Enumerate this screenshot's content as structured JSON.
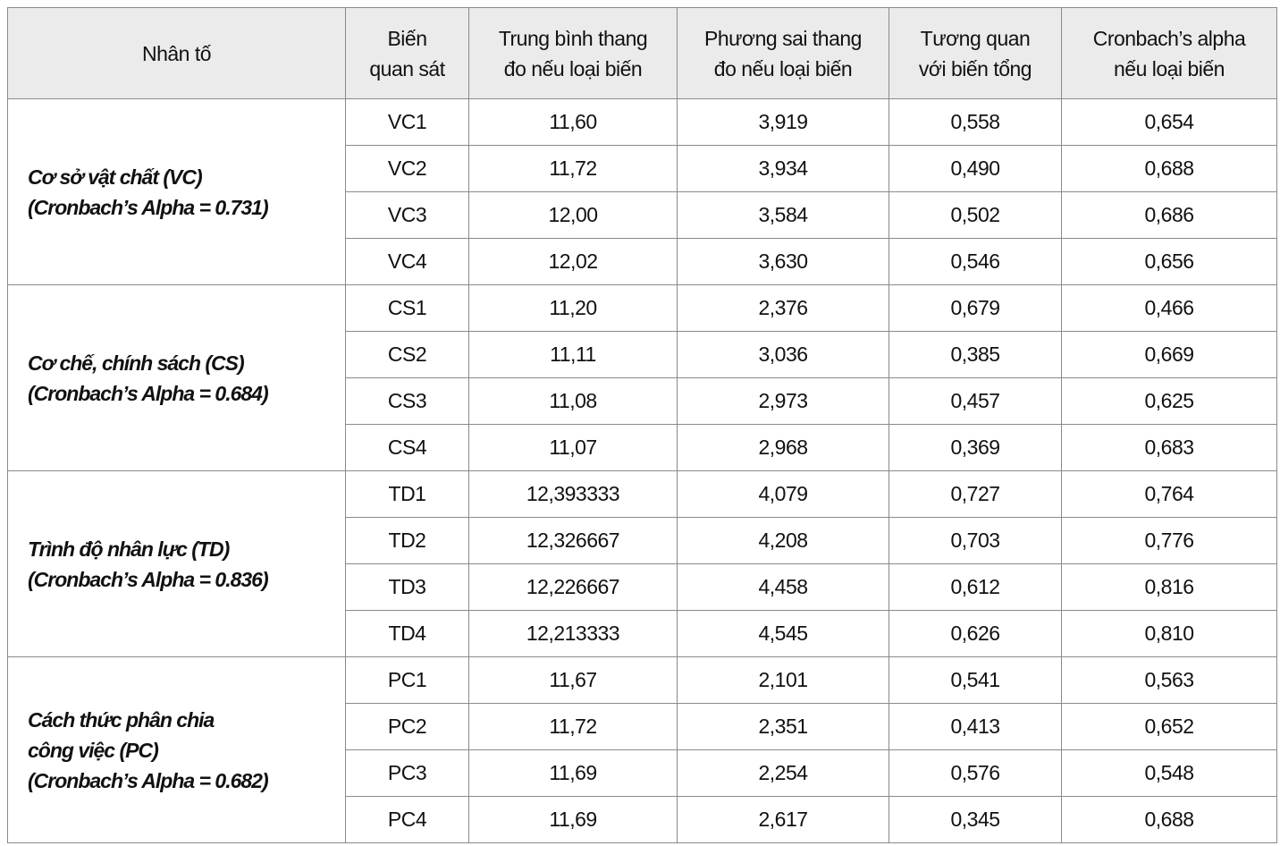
{
  "table": {
    "header": [
      [
        "Nhân tố"
      ],
      [
        "Biến",
        "quan sát"
      ],
      [
        "Trung bình thang",
        "đo nếu loại biến"
      ],
      [
        "Phương sai thang",
        "đo nếu loại biến"
      ],
      [
        "Tương quan",
        "với biến tổng"
      ],
      [
        "Cronbach’s alpha",
        "nếu loại biến"
      ]
    ],
    "groups": [
      {
        "factor": [
          "Cơ sở vật chất (VC)",
          "(Cronbach’s Alpha = 0.731)"
        ],
        "rows": [
          [
            "VC1",
            "11,60",
            "3,919",
            "0,558",
            "0,654"
          ],
          [
            "VC2",
            "11,72",
            "3,934",
            "0,490",
            "0,688"
          ],
          [
            "VC3",
            "12,00",
            "3,584",
            "0,502",
            "0,686"
          ],
          [
            "VC4",
            "12,02",
            "3,630",
            "0,546",
            "0,656"
          ]
        ]
      },
      {
        "factor": [
          "Cơ chế, chính sách (CS)",
          "(Cronbach’s Alpha = 0.684)"
        ],
        "rows": [
          [
            "CS1",
            "11,20",
            "2,376",
            "0,679",
            "0,466"
          ],
          [
            "CS2",
            "11,11",
            "3,036",
            "0,385",
            "0,669"
          ],
          [
            "CS3",
            "11,08",
            "2,973",
            "0,457",
            "0,625"
          ],
          [
            "CS4",
            "11,07",
            "2,968",
            "0,369",
            "0,683"
          ]
        ]
      },
      {
        "factor": [
          "Trình độ nhân lực (TD)",
          "(Cronbach’s Alpha = 0.836)"
        ],
        "rows": [
          [
            "TD1",
            "12,393333",
            "4,079",
            "0,727",
            "0,764"
          ],
          [
            "TD2",
            "12,326667",
            "4,208",
            "0,703",
            "0,776"
          ],
          [
            "TD3",
            "12,226667",
            "4,458",
            "0,612",
            "0,816"
          ],
          [
            "TD4",
            "12,213333",
            "4,545",
            "0,626",
            "0,810"
          ]
        ]
      },
      {
        "factor": [
          "Cách thức phân chia",
          "công việc (PC)",
          "(Cronbach’s Alpha = 0.682)"
        ],
        "rows": [
          [
            "PC1",
            "11,67",
            "2,101",
            "0,541",
            "0,563"
          ],
          [
            "PC2",
            "11,72",
            "2,351",
            "0,413",
            "0,652"
          ],
          [
            "PC3",
            "11,69",
            "2,254",
            "0,576",
            "0,548"
          ],
          [
            "PC4",
            "11,69",
            "2,617",
            "0,345",
            "0,688"
          ]
        ]
      }
    ]
  }
}
